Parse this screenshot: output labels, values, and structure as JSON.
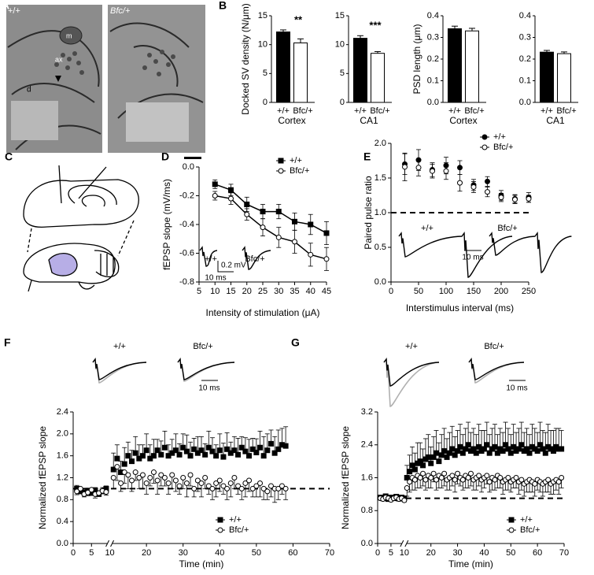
{
  "panels": {
    "A": {
      "label": "A",
      "image_labels": [
        "+/+",
        "Bfc/+"
      ],
      "annotations": [
        "m",
        "ax",
        "d"
      ]
    },
    "C": {
      "label": "C"
    }
  },
  "chart_data": [
    {
      "type": "bar",
      "panel_label": "B",
      "y_label": "Docked SV density (N/μm)",
      "categories": [
        "+/+",
        "Bfc/+"
      ],
      "values": [
        12.2,
        10.3
      ],
      "errors": [
        0.35,
        0.7
      ],
      "colors": [
        "#000000",
        "#ffffff"
      ],
      "group_label": "Cortex",
      "significance": "**",
      "ylim": [
        0,
        15
      ],
      "yticks": [
        0,
        5,
        10,
        15
      ]
    },
    {
      "type": "bar",
      "categories": [
        "+/+",
        "Bfc/+"
      ],
      "values": [
        11.1,
        8.5
      ],
      "errors": [
        0.45,
        0.3
      ],
      "colors": [
        "#000000",
        "#ffffff"
      ],
      "group_label": "CA1",
      "significance": "***",
      "ylim": [
        0,
        15
      ],
      "yticks": [
        0,
        5,
        10,
        15
      ]
    },
    {
      "type": "bar",
      "y_label": "PSD length (μm)",
      "categories": [
        "+/+",
        "Bfc/+"
      ],
      "values": [
        0.34,
        0.33
      ],
      "errors": [
        0.012,
        0.012
      ],
      "colors": [
        "#000000",
        "#ffffff"
      ],
      "group_label": "Cortex",
      "ylim": [
        0,
        0.4
      ],
      "yticks": [
        {
          "value": 0,
          "label": "0.0"
        },
        0.1,
        0.2,
        0.3,
        0.4
      ]
    },
    {
      "type": "bar",
      "categories": [
        "+/+",
        "Bfc/+"
      ],
      "values": [
        0.232,
        0.225
      ],
      "errors": [
        0.008,
        0.008
      ],
      "colors": [
        "#000000",
        "#ffffff"
      ],
      "group_label": "CA1",
      "ylim": [
        0,
        0.4
      ],
      "yticks": [
        {
          "value": 0,
          "label": "0.0"
        },
        0.1,
        0.2,
        0.3,
        0.4
      ]
    },
    {
      "type": "line",
      "panel_label": "D",
      "x_label": "Intensity of stimulation (μA)",
      "y_label": "fEPSP slope (mV/ms)",
      "legend": "upper right",
      "x": [
        10,
        15,
        20,
        25,
        30,
        35,
        40,
        45
      ],
      "xlim": [
        5,
        45
      ],
      "xticks": [
        5,
        10,
        15,
        20,
        25,
        30,
        35,
        40,
        45
      ],
      "ylim": [
        -0.8,
        0
      ],
      "yticks": [
        {
          "value": 0,
          "label": "0.0"
        },
        -0.2,
        -0.4,
        -0.6,
        -0.8
      ],
      "series": [
        {
          "name": "+/+",
          "color": "#000000",
          "fill": "#000000",
          "marker": "square",
          "error_direction": "both",
          "values": [
            -0.12,
            -0.16,
            -0.26,
            -0.31,
            -0.31,
            -0.38,
            -0.4,
            -0.46
          ],
          "errors": [
            0.03,
            0.04,
            0.05,
            0.05,
            0.05,
            0.06,
            0.07,
            0.08
          ]
        },
        {
          "name": "Bfc/+",
          "color": "#000000",
          "fill": "#ffffff",
          "marker": "circle",
          "error_direction": "both",
          "values": [
            -0.2,
            -0.22,
            -0.33,
            -0.42,
            -0.49,
            -0.52,
            -0.61,
            -0.64
          ],
          "errors": [
            0.03,
            0.04,
            0.04,
            0.06,
            0.07,
            0.08,
            0.08,
            0.08
          ]
        }
      ],
      "trace_labels": [
        "+/+",
        "Bfc/+"
      ],
      "scale_labels": [
        "0.2 mV",
        "10 ms"
      ]
    },
    {
      "type": "scatter",
      "panel_label": "E",
      "x_label": "Interstimulus interval (ms)",
      "y_label": "Paired pulse ratio",
      "legend": "upper right",
      "x": [
        25,
        50,
        75,
        100,
        125,
        150,
        175,
        200,
        225,
        250
      ],
      "xlim": [
        0,
        250
      ],
      "xticks": [
        0,
        50,
        100,
        150,
        200,
        250
      ],
      "ylim": [
        0,
        2
      ],
      "yticks": [
        {
          "value": 0,
          "label": "0.0"
        },
        0.5,
        {
          "value": 1,
          "label": "1.0"
        },
        1.5,
        {
          "value": 2,
          "label": "2.0"
        }
      ],
      "reference_line": 1,
      "series": [
        {
          "name": "+/+",
          "color": "#000000",
          "fill": "#000000",
          "marker": "circle",
          "error_direction": "both",
          "values": [
            1.7,
            1.76,
            1.62,
            1.68,
            1.65,
            1.4,
            1.45,
            1.25,
            1.2,
            1.22
          ],
          "errors": [
            0.15,
            0.15,
            0.1,
            0.12,
            0.1,
            0.08,
            0.07,
            0.07,
            0.06,
            0.07
          ]
        },
        {
          "name": "Bfc/+",
          "color": "#000000",
          "fill": "#ffffff",
          "marker": "circle",
          "error_direction": "both",
          "values": [
            1.66,
            1.65,
            1.6,
            1.6,
            1.43,
            1.37,
            1.3,
            1.22,
            1.19,
            1.2
          ],
          "errors": [
            0.2,
            0.12,
            0.1,
            0.12,
            0.12,
            0.08,
            0.07,
            0.06,
            0.06,
            0.05
          ]
        }
      ],
      "trace_labels": [
        "+/+",
        "Bfc/+"
      ],
      "scale_labels": [
        "10 ms"
      ]
    },
    {
      "type": "scatter",
      "panel_label": "F",
      "x_label": "Time (min)",
      "y_label": "Normalized fEPSP slope",
      "legend": "lower right",
      "x_break": 10,
      "x": [
        1,
        2,
        3,
        4,
        5,
        6,
        7,
        8,
        9,
        11,
        12,
        13,
        14,
        15,
        16,
        17,
        18,
        19,
        20,
        21,
        22,
        23,
        24,
        25,
        26,
        27,
        28,
        29,
        30,
        31,
        32,
        33,
        34,
        35,
        36,
        37,
        38,
        39,
        40,
        41,
        42,
        43,
        44,
        45,
        46,
        47,
        48,
        49,
        50,
        51,
        52,
        53,
        54,
        55,
        56,
        57,
        58
      ],
      "xlim": [
        0,
        70
      ],
      "xticks": [
        0,
        5,
        10,
        20,
        30,
        40,
        50,
        60,
        70
      ],
      "ylim": [
        0,
        2.4
      ],
      "yticks": [
        {
          "value": 0,
          "label": "0.0"
        },
        0.4,
        0.8,
        1.2,
        1.6,
        {
          "value": 2,
          "label": "2.0"
        },
        2.4
      ],
      "reference_line": 1,
      "series": [
        {
          "name": "+/+",
          "color": "#000000",
          "fill": "#000000",
          "marker": "square",
          "error_direction": "up",
          "values": [
            1.0,
            0.95,
            0.93,
            0.96,
            0.92,
            0.97,
            0.9,
            0.95,
            1.0,
            1.35,
            1.55,
            1.3,
            1.45,
            1.6,
            1.5,
            1.65,
            1.55,
            1.6,
            1.7,
            1.55,
            1.6,
            1.7,
            1.62,
            1.75,
            1.6,
            1.65,
            1.7,
            1.62,
            1.75,
            1.68,
            1.6,
            1.72,
            1.65,
            1.7,
            1.62,
            1.75,
            1.68,
            1.6,
            1.7,
            1.58,
            1.72,
            1.65,
            1.7,
            1.62,
            1.75,
            1.68,
            1.6,
            1.72,
            1.66,
            1.75,
            1.6,
            1.7,
            1.82,
            1.65,
            1.72,
            1.8,
            1.78
          ],
          "errors": [
            0.06,
            0.05,
            0.07,
            0.05,
            0.06,
            0.05,
            0.06,
            0.07,
            0.05,
            0.3,
            0.25,
            0.2,
            0.3,
            0.25,
            0.2,
            0.3,
            0.25,
            0.2,
            0.3,
            0.25,
            0.3,
            0.2,
            0.25,
            0.3,
            0.2,
            0.25,
            0.3,
            0.2,
            0.25,
            0.3,
            0.25,
            0.2,
            0.3,
            0.25,
            0.2,
            0.3,
            0.25,
            0.2,
            0.3,
            0.25,
            0.3,
            0.2,
            0.25,
            0.3,
            0.2,
            0.25,
            0.3,
            0.2,
            0.25,
            0.3,
            0.35,
            0.3,
            0.25,
            0.3,
            0.35,
            0.3,
            0.35
          ]
        },
        {
          "name": "Bfc/+",
          "color": "#000000",
          "fill": "#ffffff",
          "marker": "circle",
          "error_direction": "down",
          "values": [
            0.95,
            1.0,
            0.9,
            0.93,
            0.98,
            0.9,
            0.92,
            0.96,
            0.94,
            1.2,
            1.4,
            1.1,
            1.3,
            1.25,
            1.15,
            1.3,
            1.2,
            1.25,
            1.1,
            1.2,
            1.3,
            1.15,
            1.25,
            1.2,
            1.1,
            1.25,
            1.15,
            1.05,
            1.2,
            1.1,
            1.25,
            1.0,
            1.15,
            1.1,
            1.2,
            1.05,
            1.0,
            1.1,
            1.15,
            1.05,
            1.0,
            1.1,
            1.2,
            1.05,
            1.0,
            1.1,
            1.15,
            1.0,
            1.05,
            1.1,
            1.0,
            0.95,
            1.05,
            1.0,
            1.0,
            1.05,
            1.0
          ],
          "errors": [
            0.06,
            0.07,
            0.05,
            0.06,
            0.05,
            0.07,
            0.06,
            0.05,
            0.06,
            0.2,
            0.25,
            0.15,
            0.2,
            0.25,
            0.2,
            0.15,
            0.2,
            0.25,
            0.2,
            0.15,
            0.2,
            0.25,
            0.2,
            0.15,
            0.2,
            0.25,
            0.2,
            0.15,
            0.2,
            0.25,
            0.2,
            0.15,
            0.2,
            0.25,
            0.2,
            0.15,
            0.2,
            0.25,
            0.2,
            0.15,
            0.2,
            0.25,
            0.2,
            0.15,
            0.2,
            0.25,
            0.2,
            0.15,
            0.2,
            0.25,
            0.2,
            0.15,
            0.2,
            0.25,
            0.2,
            0.15,
            0.2
          ]
        }
      ],
      "trace_labels": [
        "+/+",
        "Bfc/+"
      ],
      "scale_labels": [
        "10 ms"
      ]
    },
    {
      "type": "scatter",
      "panel_label": "G",
      "x_label": "Time (min)",
      "y_label": "Normalized fEPSP slope",
      "legend": "lower right",
      "x_break": 10,
      "x": [
        1,
        2,
        3,
        4,
        5,
        6,
        7,
        8,
        9,
        10,
        11,
        12,
        13,
        14,
        15,
        16,
        17,
        18,
        19,
        20,
        21,
        22,
        23,
        24,
        25,
        26,
        27,
        28,
        29,
        30,
        31,
        32,
        33,
        34,
        35,
        36,
        37,
        38,
        39,
        40,
        41,
        42,
        43,
        44,
        45,
        46,
        47,
        48,
        49,
        50,
        51,
        52,
        53,
        54,
        55,
        56,
        57,
        58,
        59,
        60,
        61,
        62,
        63,
        64,
        65,
        66,
        67,
        68,
        69
      ],
      "xlim": [
        0,
        70
      ],
      "xticks": [
        0,
        5,
        10,
        20,
        30,
        40,
        50,
        60,
        70
      ],
      "ylim": [
        0,
        3.2
      ],
      "yticks": [
        {
          "value": 0,
          "label": "0.0"
        },
        0.8,
        1.6,
        2.4,
        3.2
      ],
      "reference_line": 1.1,
      "series": [
        {
          "name": "+/+",
          "color": "#000000",
          "fill": "#000000",
          "marker": "square",
          "error_direction": "up",
          "values": [
            1.12,
            1.1,
            1.15,
            1.08,
            1.12,
            1.1,
            1.14,
            1.09,
            1.12,
            1.1,
            1.6,
            1.75,
            1.9,
            1.8,
            1.95,
            2.0,
            1.9,
            2.05,
            2.1,
            1.95,
            2.1,
            2.2,
            2.0,
            2.15,
            2.25,
            2.1,
            2.2,
            2.3,
            2.15,
            2.25,
            2.35,
            2.2,
            2.3,
            2.4,
            2.25,
            2.3,
            2.2,
            2.35,
            2.25,
            2.3,
            2.4,
            2.2,
            2.3,
            2.35,
            2.2,
            2.3,
            2.25,
            2.4,
            2.3,
            2.2,
            2.35,
            2.25,
            2.3,
            2.4,
            2.25,
            2.3,
            2.2,
            2.35,
            2.3,
            2.25,
            2.4,
            2.3,
            2.2,
            2.35,
            2.3,
            2.25,
            2.35,
            2.3,
            2.3
          ],
          "errors": [
            0.05,
            0.05,
            0.05,
            0.05,
            0.05,
            0.05,
            0.05,
            0.05,
            0.05,
            0.05,
            0.3,
            0.4,
            0.45,
            0.4,
            0.5,
            0.45,
            0.4,
            0.5,
            0.55,
            0.4,
            0.5,
            0.55,
            0.45,
            0.5,
            0.55,
            0.45,
            0.5,
            0.55,
            0.45,
            0.5,
            0.55,
            0.45,
            0.5,
            0.55,
            0.45,
            0.5,
            0.45,
            0.55,
            0.5,
            0.45,
            0.55,
            0.45,
            0.5,
            0.55,
            0.45,
            0.5,
            0.45,
            0.55,
            0.5,
            0.45,
            0.55,
            0.45,
            0.5,
            0.55,
            0.45,
            0.5,
            0.45,
            0.55,
            0.5,
            0.45,
            0.55,
            0.45,
            0.5,
            0.55,
            0.45,
            0.5,
            0.45,
            0.5,
            0.45
          ]
        },
        {
          "name": "Bfc/+",
          "color": "#000000",
          "fill": "#ffffff",
          "marker": "circle",
          "error_direction": "down",
          "values": [
            1.1,
            1.08,
            1.12,
            1.1,
            1.06,
            1.1,
            1.12,
            1.08,
            1.1,
            1.05,
            1.35,
            1.5,
            1.6,
            1.55,
            1.65,
            1.6,
            1.7,
            1.55,
            1.65,
            1.6,
            1.7,
            1.55,
            1.65,
            1.6,
            1.7,
            1.55,
            1.6,
            1.65,
            1.55,
            1.7,
            1.6,
            1.55,
            1.65,
            1.6,
            1.7,
            1.55,
            1.6,
            1.65,
            1.55,
            1.6,
            1.65,
            1.5,
            1.6,
            1.55,
            1.65,
            1.6,
            1.5,
            1.55,
            1.6,
            1.5,
            1.55,
            1.6,
            1.5,
            1.55,
            1.45,
            1.5,
            1.55,
            1.5,
            1.45,
            1.55,
            1.5,
            1.45,
            1.5,
            1.55,
            1.45,
            1.5,
            1.55,
            1.5,
            1.6
          ],
          "errors": [
            0.04,
            0.04,
            0.04,
            0.04,
            0.04,
            0.04,
            0.04,
            0.04,
            0.04,
            0.04,
            0.2,
            0.25,
            0.3,
            0.25,
            0.3,
            0.25,
            0.3,
            0.25,
            0.3,
            0.25,
            0.2,
            0.25,
            0.3,
            0.25,
            0.3,
            0.25,
            0.3,
            0.25,
            0.3,
            0.25,
            0.2,
            0.25,
            0.3,
            0.25,
            0.3,
            0.25,
            0.3,
            0.25,
            0.3,
            0.25,
            0.2,
            0.25,
            0.3,
            0.25,
            0.3,
            0.25,
            0.3,
            0.25,
            0.3,
            0.25,
            0.2,
            0.25,
            0.3,
            0.25,
            0.3,
            0.25,
            0.3,
            0.25,
            0.3,
            0.25,
            0.25,
            0.3,
            0.25,
            0.3,
            0.25,
            0.3,
            0.25,
            0.3,
            0.25
          ]
        }
      ],
      "trace_labels": [
        "+/+",
        "Bfc/+"
      ],
      "scale_labels": [
        "10 ms"
      ]
    }
  ]
}
